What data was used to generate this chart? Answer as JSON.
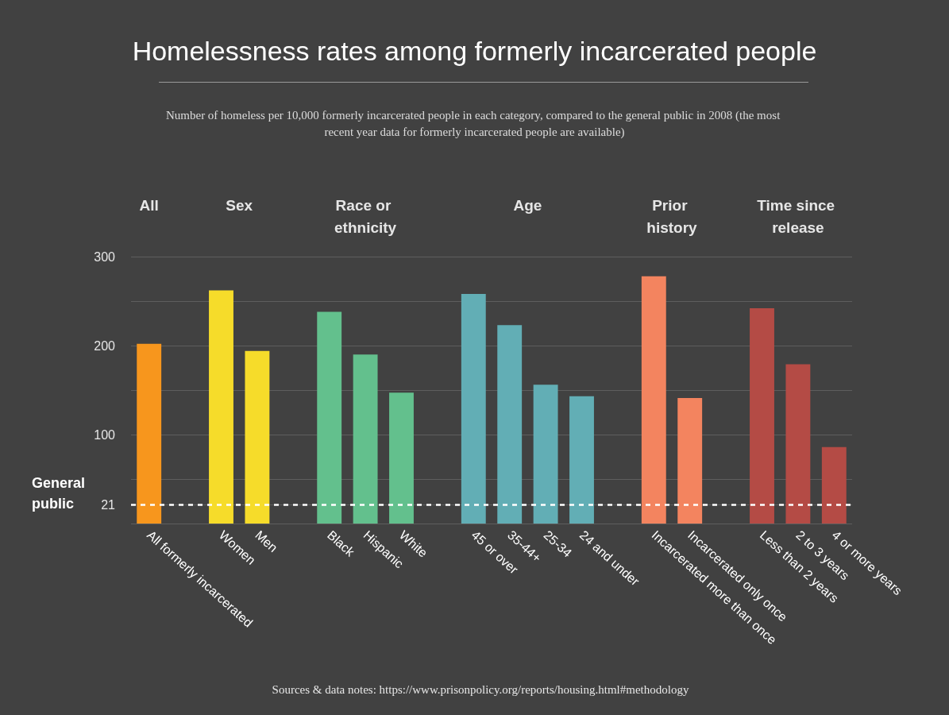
{
  "chart_data": {
    "type": "bar",
    "title": "Homelessness rates among formerly incarcerated people",
    "subtitle": "Number of homeless per 10,000 formerly incarcerated people in each category, compared to the general public in 2008 (the most recent year data for formerly incarcerated people are available)",
    "categories": [
      "All formerly incarcerated",
      null,
      "Women",
      "Men",
      null,
      "Black",
      "Hispanic",
      "White",
      null,
      "45 or over",
      "35-44+",
      "25-34",
      "24 and under",
      null,
      "Incarcerated more than once",
      "Incarcerated only once",
      null,
      "Less than 2 years",
      "2 to 3 years",
      "4 or more years"
    ],
    "values": [
      202,
      null,
      262,
      194,
      null,
      238,
      190,
      147,
      null,
      258,
      223,
      156,
      143,
      null,
      278,
      141,
      null,
      242,
      179,
      86
    ],
    "colors": [
      "#f7961d",
      null,
      "#f6dc2a",
      "#f6dc2a",
      null,
      "#63c08d",
      "#63c08d",
      "#63c08d",
      null,
      "#62aeb5",
      "#62aeb5",
      "#62aeb5",
      "#62aeb5",
      null,
      "#f3845f",
      "#f3845f",
      null,
      "#b44b45",
      "#b44b45",
      "#b44b45"
    ],
    "ylim": [
      0,
      300
    ],
    "yticks": [
      {
        "value": 0,
        "label": null
      },
      21,
      {
        "value": 50,
        "label": null
      },
      100,
      {
        "value": 150,
        "label": null
      },
      200,
      {
        "value": 250,
        "label": null
      },
      300
    ],
    "grid": "y",
    "ref_lines": [
      {
        "axis": "y",
        "value": 21,
        "label": "General public",
        "color": "#ffffff",
        "line_style": "dashed"
      }
    ],
    "annotations": [
      "All",
      "Sex",
      "Race or ethnicity",
      "Age",
      "Prior history",
      "Time since release",
      "Sources & data notes: https://www.prisonpolicy.org/reports/housing.html#methodology"
    ]
  }
}
